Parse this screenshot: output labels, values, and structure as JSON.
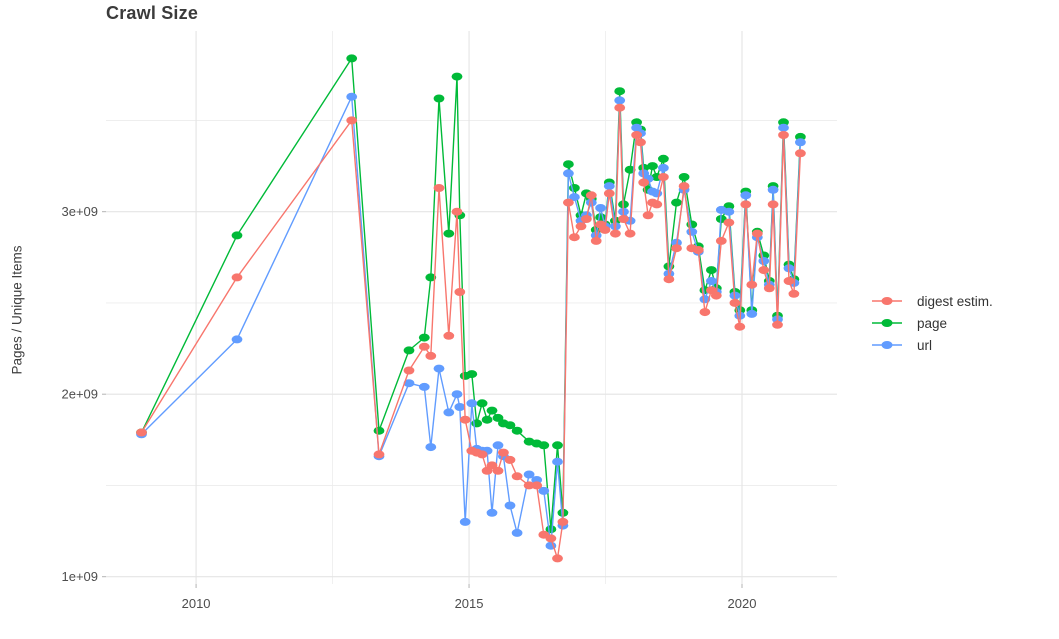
{
  "title": "Crawl Size",
  "y_axis_title": "Pages / Unique Items",
  "legend": {
    "items": [
      {
        "label": "digest estim.",
        "color": "#F8766D"
      },
      {
        "label": "page",
        "color": "#00BA38"
      },
      {
        "label": "url",
        "color": "#619CFF"
      }
    ]
  },
  "chart_data": {
    "type": "line",
    "title": "Crawl Size",
    "xlabel": "",
    "ylabel": "Pages / Unique Items",
    "y_unit": "items (value given in billions, 1e9)",
    "grid": true,
    "legend_position": "right",
    "x_range": [
      2008.35,
      2021.74
    ],
    "y_range": [
      0.96,
      3.99
    ],
    "x_ticks": [
      {
        "value": 2010,
        "label": "2010"
      },
      {
        "value": 2015,
        "label": "2015"
      },
      {
        "value": 2020,
        "label": "2020"
      }
    ],
    "y_ticks": [
      {
        "value": 1,
        "label": "1e+09"
      },
      {
        "value": 2,
        "label": "2e+09"
      },
      {
        "value": 3,
        "label": "3e+09"
      }
    ],
    "x_minor_ticks": [
      2012.5,
      2017.5
    ],
    "y_minor_ticks": [
      1.5,
      2.5,
      3.5
    ],
    "x": [
      2009.0,
      2010.75,
      2012.85,
      2013.35,
      2013.9,
      2014.18,
      2014.3,
      2014.45,
      2014.63,
      2014.78,
      2014.83,
      2014.93,
      2015.05,
      2015.14,
      2015.24,
      2015.33,
      2015.42,
      2015.53,
      2015.63,
      2015.75,
      2015.88,
      2016.1,
      2016.24,
      2016.37,
      2016.5,
      2016.62,
      2016.72,
      2016.82,
      2016.93,
      2017.05,
      2017.15,
      2017.24,
      2017.33,
      2017.41,
      2017.49,
      2017.57,
      2017.68,
      2017.76,
      2017.83,
      2017.95,
      2018.07,
      2018.14,
      2018.2,
      2018.28,
      2018.36,
      2018.44,
      2018.56,
      2018.66,
      2018.8,
      2018.94,
      2019.08,
      2019.2,
      2019.32,
      2019.44,
      2019.53,
      2019.62,
      2019.76,
      2019.87,
      2019.96,
      2020.07,
      2020.18,
      2020.28,
      2020.4,
      2020.5,
      2020.57,
      2020.65,
      2020.76,
      2020.86,
      2020.95,
      2021.07
    ],
    "series": [
      {
        "name": "digest estim.",
        "color": "#F8766D",
        "values": [
          1.79,
          2.64,
          3.5,
          1.67,
          2.13,
          2.26,
          2.21,
          3.13,
          2.32,
          3.0,
          2.56,
          1.86,
          1.69,
          1.68,
          1.67,
          1.58,
          1.61,
          1.58,
          1.68,
          1.64,
          1.55,
          1.5,
          1.5,
          1.23,
          1.21,
          1.1,
          1.3,
          3.05,
          2.86,
          2.92,
          2.96,
          3.09,
          2.84,
          2.93,
          2.9,
          3.1,
          2.88,
          3.57,
          2.96,
          2.88,
          3.42,
          3.38,
          3.16,
          2.98,
          3.05,
          3.04,
          3.19,
          2.63,
          2.8,
          3.14,
          2.8,
          2.79,
          2.45,
          2.57,
          2.54,
          2.84,
          2.94,
          2.5,
          2.37,
          3.04,
          2.6,
          2.88,
          2.68,
          2.58,
          3.04,
          2.38,
          3.42,
          2.62,
          2.55,
          3.32
        ]
      },
      {
        "name": "page",
        "color": "#00BA38",
        "values": [
          1.79,
          2.87,
          3.84,
          1.8,
          2.24,
          2.31,
          2.64,
          3.62,
          2.88,
          3.74,
          2.98,
          2.1,
          2.11,
          1.84,
          1.95,
          1.86,
          1.91,
          1.87,
          1.84,
          1.83,
          1.8,
          1.74,
          1.73,
          1.72,
          1.26,
          1.72,
          1.35,
          3.26,
          3.13,
          2.98,
          3.1,
          3.07,
          2.9,
          2.97,
          2.93,
          3.16,
          2.95,
          3.66,
          3.04,
          3.23,
          3.49,
          3.45,
          3.24,
          3.12,
          3.25,
          3.19,
          3.29,
          2.7,
          3.05,
          3.19,
          2.93,
          2.81,
          2.57,
          2.68,
          2.58,
          2.96,
          3.03,
          2.56,
          2.46,
          3.11,
          2.46,
          2.89,
          2.76,
          2.62,
          3.14,
          2.43,
          3.49,
          2.71,
          2.63,
          3.41
        ]
      },
      {
        "name": "url",
        "color": "#619CFF",
        "values": [
          1.78,
          2.3,
          3.63,
          1.66,
          2.06,
          2.04,
          1.71,
          2.14,
          1.9,
          2.0,
          1.93,
          1.3,
          1.95,
          1.7,
          1.69,
          1.69,
          1.35,
          1.72,
          1.66,
          1.39,
          1.24,
          1.56,
          1.53,
          1.47,
          1.17,
          1.63,
          1.28,
          3.21,
          3.08,
          2.95,
          2.98,
          3.05,
          2.87,
          3.02,
          2.92,
          3.14,
          2.92,
          3.61,
          3.0,
          2.95,
          3.46,
          3.43,
          3.21,
          3.18,
          3.11,
          3.1,
          3.24,
          2.66,
          2.83,
          3.12,
          2.89,
          2.78,
          2.52,
          2.62,
          2.56,
          3.01,
          3.0,
          2.54,
          2.43,
          3.09,
          2.44,
          2.86,
          2.73,
          2.6,
          3.12,
          2.41,
          3.46,
          2.69,
          2.61,
          3.38
        ]
      }
    ],
    "style": {
      "grid_major_color": "#e4e4e4",
      "grid_minor_color": "#ececec",
      "tick_color": "#b3b3b3",
      "axis_text_color": "#4d4d4d",
      "title_color": "#3b3b3b",
      "background": "#ffffff"
    }
  }
}
